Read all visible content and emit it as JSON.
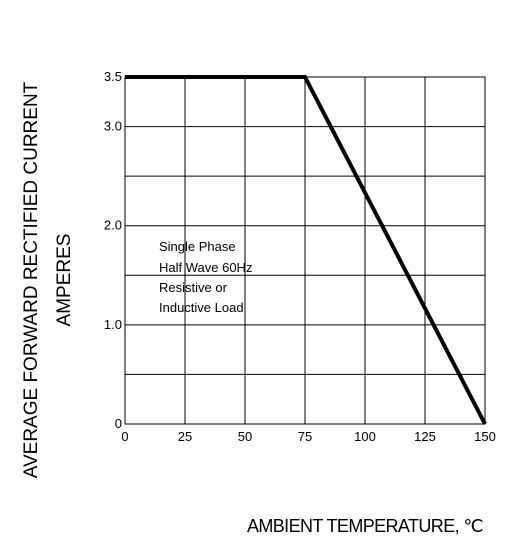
{
  "chart_data": {
    "type": "line",
    "xlabel": "AMBIENT TEMPERATURE, ℃",
    "ylabel_lines": [
      "AVERAGE FORWARD RECTIFIED CURRENT",
      "AMPERES"
    ],
    "annotation_lines": [
      "Single Phase",
      "Half Wave 60Hz",
      "Resistive or",
      "Inductive Load"
    ],
    "xlim": [
      0,
      150
    ],
    "ylim": [
      0,
      3.5
    ],
    "x_ticks": [
      0,
      25,
      50,
      75,
      100,
      125,
      150
    ],
    "x_tick_labels": [
      "0",
      "25",
      "50",
      "75",
      "100",
      "125",
      "150"
    ],
    "y_ticks": [
      0,
      1.0,
      2.0,
      3.0,
      3.5
    ],
    "y_tick_labels": [
      "0",
      "1.0",
      "2.0",
      "3.0",
      "3.5"
    ],
    "y_gridlines": [
      0.5,
      1.0,
      1.5,
      2.0,
      2.5,
      3.0
    ],
    "grid": true,
    "series": [
      {
        "x": [
          0,
          75,
          150
        ],
        "y": [
          3.5,
          3.5,
          0
        ]
      }
    ],
    "line_color": "#000000"
  }
}
